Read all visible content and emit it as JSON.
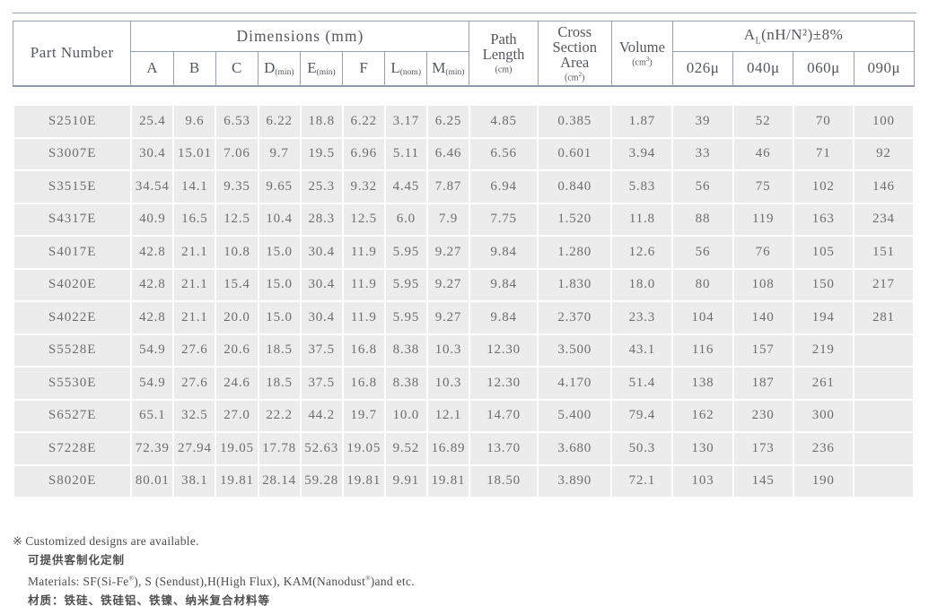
{
  "table": {
    "header": {
      "part_number": "Part Number",
      "dimensions_label": "Dimensions (mm)",
      "dim_columns": [
        {
          "letter": "A",
          "qual": ""
        },
        {
          "letter": "B",
          "qual": ""
        },
        {
          "letter": "C",
          "qual": ""
        },
        {
          "letter": "D",
          "qual": "(min)"
        },
        {
          "letter": "E",
          "qual": "(min)"
        },
        {
          "letter": "F",
          "qual": ""
        },
        {
          "letter": "L",
          "qual": "(nom)"
        },
        {
          "letter": "M",
          "qual": "(min)"
        }
      ],
      "path_length": {
        "line1": "Path",
        "line2": "Length",
        "unit_open": "(cm",
        "unit_sup": "",
        "unit_close": ")"
      },
      "cross_section": {
        "line1": "Cross",
        "line2": "Section",
        "line3": "Area",
        "unit_open": "(cm",
        "unit_sup": "2",
        "unit_close": ")"
      },
      "volume": {
        "label": "Volume",
        "unit_open": "(cm",
        "unit_sup": "3",
        "unit_close": ")"
      },
      "al": {
        "base": "A",
        "sub": "L",
        "rest": "(nH/N²)±8%"
      },
      "al_columns": [
        "026μ",
        "040μ",
        "060μ",
        "090μ"
      ]
    },
    "rows": [
      {
        "part": "S2510E",
        "values": [
          "25.4",
          "9.6",
          "6.53",
          "6.22",
          "18.8",
          "6.22",
          "3.17",
          "6.25",
          "4.85",
          "0.385",
          "1.87",
          "39",
          "52",
          "70",
          "100"
        ]
      },
      {
        "part": "S3007E",
        "values": [
          "30.4",
          "15.01",
          "7.06",
          "9.7",
          "19.5",
          "6.96",
          "5.11",
          "6.46",
          "6.56",
          "0.601",
          "3.94",
          "33",
          "46",
          "71",
          "92"
        ]
      },
      {
        "part": "S3515E",
        "values": [
          "34.54",
          "14.1",
          "9.35",
          "9.65",
          "25.3",
          "9.32",
          "4.45",
          "7.87",
          "6.94",
          "0.840",
          "5.83",
          "56",
          "75",
          "102",
          "146"
        ]
      },
      {
        "part": "S4317E",
        "values": [
          "40.9",
          "16.5",
          "12.5",
          "10.4",
          "28.3",
          "12.5",
          "6.0",
          "7.9",
          "7.75",
          "1.520",
          "11.8",
          "88",
          "119",
          "163",
          "234"
        ]
      },
      {
        "part": "S4017E",
        "values": [
          "42.8",
          "21.1",
          "10.8",
          "15.0",
          "30.4",
          "11.9",
          "5.95",
          "9.27",
          "9.84",
          "1.280",
          "12.6",
          "56",
          "76",
          "105",
          "151"
        ]
      },
      {
        "part": "S4020E",
        "values": [
          "42.8",
          "21.1",
          "15.4",
          "15.0",
          "30.4",
          "11.9",
          "5.95",
          "9.27",
          "9.84",
          "1.830",
          "18.0",
          "80",
          "108",
          "150",
          "217"
        ]
      },
      {
        "part": "S4022E",
        "values": [
          "42.8",
          "21.1",
          "20.0",
          "15.0",
          "30.4",
          "11.9",
          "5.95",
          "9.27",
          "9.84",
          "2.370",
          "23.3",
          "104",
          "140",
          "194",
          "281"
        ]
      },
      {
        "part": "S5528E",
        "values": [
          "54.9",
          "27.6",
          "20.6",
          "18.5",
          "37.5",
          "16.8",
          "8.38",
          "10.3",
          "12.30",
          "3.500",
          "43.1",
          "116",
          "157",
          "219",
          ""
        ]
      },
      {
        "part": "S5530E",
        "values": [
          "54.9",
          "27.6",
          "24.6",
          "18.5",
          "37.5",
          "16.8",
          "8.38",
          "10.3",
          "12.30",
          "4.170",
          "51.4",
          "138",
          "187",
          "261",
          ""
        ]
      },
      {
        "part": "S6527E",
        "values": [
          "65.1",
          "32.5",
          "27.0",
          "22.2",
          "44.2",
          "19.7",
          "10.0",
          "12.1",
          "14.70",
          "5.400",
          "79.4",
          "162",
          "230",
          "300",
          ""
        ]
      },
      {
        "part": "S7228E",
        "values": [
          "72.39",
          "27.94",
          "19.05",
          "17.78",
          "52.63",
          "19.05",
          "9.52",
          "16.89",
          "13.70",
          "3.680",
          "50.3",
          "130",
          "173",
          "236",
          ""
        ]
      },
      {
        "part": "S8020E",
        "values": [
          "80.01",
          "38.1",
          "19.81",
          "28.14",
          "59.28",
          "19.81",
          "9.91",
          "19.81",
          "18.50",
          "3.890",
          "72.1",
          "103",
          "145",
          "190",
          ""
        ]
      }
    ]
  },
  "footer": {
    "note_marker": "※",
    "note_en": "Customized designs are available.",
    "note_zh": "可提供客制化定制",
    "materials": {
      "p1": "Materials: SF(Si-Fe",
      "sup1": "®",
      "p2": "), S (Sendust),H(High Flux), KAM(Nanodust",
      "sup2": "®",
      "p3": ")and etc."
    },
    "materials_zh": "材质：铁硅、铁硅铝、铁镍、纳米复合材料等"
  },
  "colors": {
    "border": "#96a1b4",
    "header_text": "#54585f",
    "cell_bg": "#ececec",
    "cell_text": "#6d6d6d"
  }
}
